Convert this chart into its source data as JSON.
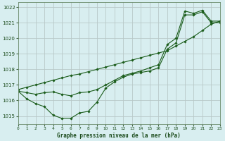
{
  "title": "Graphe pression niveau de la mer (hPa)",
  "bg_color": "#d8eef0",
  "grid_color": "#b8c8c8",
  "line_color": "#1a5c1a",
  "marker_color": "#1a5c1a",
  "xlim": [
    0,
    23
  ],
  "ylim": [
    1014.5,
    1022.3
  ],
  "yticks": [
    1015,
    1016,
    1017,
    1018,
    1019,
    1020,
    1021,
    1022
  ],
  "xticks": [
    0,
    1,
    2,
    3,
    4,
    5,
    6,
    7,
    8,
    9,
    10,
    11,
    12,
    13,
    14,
    15,
    16,
    17,
    18,
    19,
    20,
    21,
    22,
    23
  ],
  "series1": {
    "x": [
      0,
      1,
      2,
      3,
      4,
      5,
      6,
      7,
      8,
      9,
      10,
      11,
      12,
      13,
      14,
      15,
      16,
      17,
      18,
      19,
      20,
      21,
      22,
      23
    ],
    "y": [
      1016.6,
      1016.1,
      1015.8,
      1015.6,
      1015.05,
      1014.85,
      1014.85,
      1015.2,
      1015.3,
      1015.9,
      1016.8,
      1017.2,
      1017.5,
      1017.7,
      1017.8,
      1017.9,
      1018.1,
      1019.3,
      1019.7,
      1021.5,
      1021.5,
      1021.7,
      1021.0,
      1021.0
    ]
  },
  "series2": {
    "x": [
      0,
      1,
      2,
      3,
      4,
      5,
      6,
      7,
      8,
      9,
      10,
      11,
      12,
      13,
      14,
      15,
      16,
      17,
      18,
      19,
      20,
      21,
      22,
      23
    ],
    "y": [
      1016.7,
      1016.85,
      1017.0,
      1017.15,
      1017.3,
      1017.45,
      1017.6,
      1017.7,
      1017.85,
      1018.0,
      1018.15,
      1018.3,
      1018.45,
      1018.6,
      1018.75,
      1018.9,
      1019.05,
      1019.2,
      1019.5,
      1019.8,
      1020.1,
      1020.5,
      1020.9,
      1021.1
    ]
  },
  "series3": {
    "x": [
      0,
      1,
      2,
      3,
      4,
      5,
      6,
      7,
      8,
      9,
      10,
      11,
      12,
      13,
      14,
      15,
      16,
      17,
      18,
      19,
      20,
      21,
      22,
      23
    ],
    "y": [
      1016.6,
      1016.5,
      1016.4,
      1016.5,
      1016.55,
      1016.4,
      1016.3,
      1016.5,
      1016.55,
      1016.7,
      1017.0,
      1017.3,
      1017.6,
      1017.75,
      1017.9,
      1018.1,
      1018.3,
      1019.6,
      1020.0,
      1021.75,
      1021.6,
      1021.8,
      1021.1,
      1021.1
    ]
  }
}
